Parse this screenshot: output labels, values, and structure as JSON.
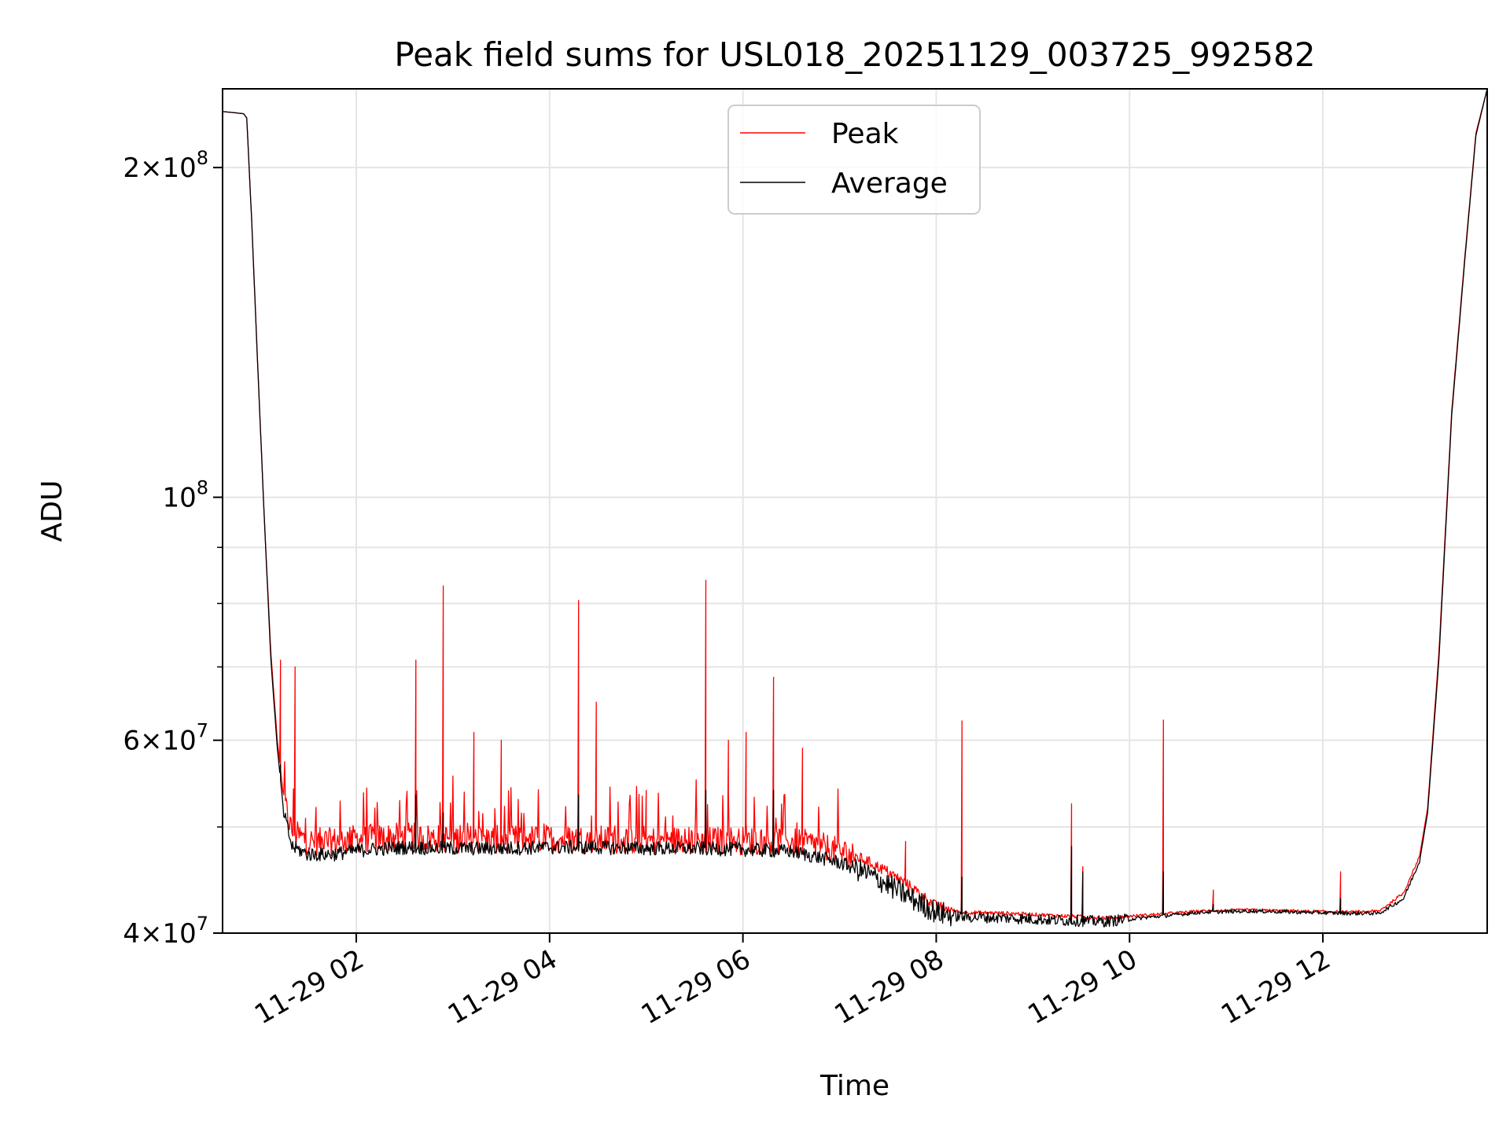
{
  "chart_data": {
    "type": "line",
    "title": "Peak field sums for USL018_20251129_003725_992582",
    "xlabel": "Time",
    "ylabel": "ADU",
    "y_scale": "log",
    "x_range": [
      "2025-11-29 00:37",
      "2025-11-29 13:42"
    ],
    "ylim": [
      40000000,
      236000000
    ],
    "x_ticks": [
      {
        "value": "2025-11-29 02:00",
        "label": "11-29 02"
      },
      {
        "value": "2025-11-29 04:00",
        "label": "11-29 04"
      },
      {
        "value": "2025-11-29 06:00",
        "label": "11-29 06"
      },
      {
        "value": "2025-11-29 08:00",
        "label": "11-29 08"
      },
      {
        "value": "2025-11-29 10:00",
        "label": "11-29 10"
      },
      {
        "value": "2025-11-29 12:00",
        "label": "11-29 12"
      }
    ],
    "y_major_ticks": [
      {
        "value": 40000000,
        "mantissa": "4",
        "exponent": "7"
      },
      {
        "value": 60000000,
        "mantissa": "6",
        "exponent": "7"
      },
      {
        "value": 100000000,
        "mantissa": "",
        "exponent": "8"
      },
      {
        "value": 200000000,
        "mantissa": "2",
        "exponent": "8"
      }
    ],
    "y_minor_ticks": [
      50000000,
      70000000,
      80000000,
      90000000
    ],
    "grid": true,
    "legend": {
      "position": "top-center"
    },
    "series": [
      {
        "name": "Peak",
        "color": "#ff0000",
        "points": [
          [
            "2025-11-29 00:37",
            225000000
          ],
          [
            "2025-11-29 00:50",
            224000000
          ],
          [
            "2025-11-29 00:52",
            222000000
          ],
          [
            "2025-11-29 00:55",
            180000000
          ],
          [
            "2025-11-29 00:59",
            130000000
          ],
          [
            "2025-11-29 01:03",
            95000000
          ],
          [
            "2025-11-29 01:07",
            72000000
          ],
          [
            "2025-11-29 01:11",
            60000000
          ],
          [
            "2025-11-29 01:15",
            53000000
          ],
          [
            "2025-11-29 01:20",
            49500000
          ],
          [
            "2025-11-29 01:30",
            48500000
          ],
          [
            "2025-11-29 01:45",
            48500000
          ],
          [
            "2025-11-29 02:00",
            48800000
          ],
          [
            "2025-11-29 02:30",
            49000000
          ],
          [
            "2025-11-29 03:00",
            48800000
          ],
          [
            "2025-11-29 03:30",
            48700000
          ],
          [
            "2025-11-29 04:00",
            48800000
          ],
          [
            "2025-11-29 04:30",
            48700000
          ],
          [
            "2025-11-29 05:00",
            48600000
          ],
          [
            "2025-11-29 05:30",
            48600000
          ],
          [
            "2025-11-29 06:00",
            48600000
          ],
          [
            "2025-11-29 06:30",
            48500000
          ],
          [
            "2025-11-29 06:45",
            48200000
          ],
          [
            "2025-11-29 07:00",
            47500000
          ],
          [
            "2025-11-29 07:15",
            46700000
          ],
          [
            "2025-11-29 07:30",
            45500000
          ],
          [
            "2025-11-29 07:45",
            44000000
          ],
          [
            "2025-11-29 08:00",
            42300000
          ],
          [
            "2025-11-29 08:15",
            41800000
          ],
          [
            "2025-11-29 08:45",
            41700000
          ],
          [
            "2025-11-29 09:15",
            41500000
          ],
          [
            "2025-11-29 09:45",
            41300000
          ],
          [
            "2025-11-29 10:15",
            41600000
          ],
          [
            "2025-11-29 10:45",
            41900000
          ],
          [
            "2025-11-29 11:15",
            42000000
          ],
          [
            "2025-11-29 11:45",
            41900000
          ],
          [
            "2025-11-29 12:15",
            41800000
          ],
          [
            "2025-11-29 12:35",
            41900000
          ],
          [
            "2025-11-29 12:50",
            43500000
          ],
          [
            "2025-11-29 13:00",
            47000000
          ],
          [
            "2025-11-29 13:05",
            52000000
          ],
          [
            "2025-11-29 13:12",
            72000000
          ],
          [
            "2025-11-29 13:20",
            120000000
          ],
          [
            "2025-11-29 13:28",
            165000000
          ],
          [
            "2025-11-29 13:35",
            215000000
          ],
          [
            "2025-11-29 13:42",
            236000000
          ]
        ],
        "spikes": [
          [
            "2025-11-29 01:13",
            71000000
          ],
          [
            "2025-11-29 01:22",
            70000000
          ],
          [
            "2025-11-29 02:37",
            71000000
          ],
          [
            "2025-11-29 02:54",
            83000000
          ],
          [
            "2025-11-29 03:13",
            61000000
          ],
          [
            "2025-11-29 03:30",
            60000000
          ],
          [
            "2025-11-29 04:18",
            80500000
          ],
          [
            "2025-11-29 04:29",
            65000000
          ],
          [
            "2025-11-29 05:00",
            54000000
          ],
          [
            "2025-11-29 05:37",
            84000000
          ],
          [
            "2025-11-29 05:51",
            60000000
          ],
          [
            "2025-11-29 06:02",
            61000000
          ],
          [
            "2025-11-29 06:19",
            68500000
          ],
          [
            "2025-11-29 06:37",
            59000000
          ],
          [
            "2025-11-29 07:41",
            48500000
          ],
          [
            "2025-11-29 08:16",
            62500000
          ],
          [
            "2025-11-29 09:24",
            52500000
          ],
          [
            "2025-11-29 09:31",
            46000000
          ],
          [
            "2025-11-29 10:21",
            62600000
          ],
          [
            "2025-11-29 10:52",
            43800000
          ],
          [
            "2025-11-29 12:11",
            45500000
          ]
        ]
      },
      {
        "name": "Average",
        "color": "#000000",
        "points": [
          [
            "2025-11-29 00:37",
            225000000
          ],
          [
            "2025-11-29 00:50",
            224000000
          ],
          [
            "2025-11-29 00:52",
            222000000
          ],
          [
            "2025-11-29 00:55",
            180000000
          ],
          [
            "2025-11-29 00:59",
            130000000
          ],
          [
            "2025-11-29 01:03",
            95000000
          ],
          [
            "2025-11-29 01:07",
            71000000
          ],
          [
            "2025-11-29 01:11",
            59000000
          ],
          [
            "2025-11-29 01:15",
            51500000
          ],
          [
            "2025-11-29 01:20",
            48000000
          ],
          [
            "2025-11-29 01:30",
            47200000
          ],
          [
            "2025-11-29 01:45",
            47200000
          ],
          [
            "2025-11-29 02:00",
            47600000
          ],
          [
            "2025-11-29 02:30",
            47900000
          ],
          [
            "2025-11-29 03:00",
            47800000
          ],
          [
            "2025-11-29 03:30",
            47800000
          ],
          [
            "2025-11-29 04:00",
            47900000
          ],
          [
            "2025-11-29 04:30",
            47900000
          ],
          [
            "2025-11-29 05:00",
            47800000
          ],
          [
            "2025-11-29 05:30",
            47800000
          ],
          [
            "2025-11-29 06:00",
            47700000
          ],
          [
            "2025-11-29 06:30",
            47500000
          ],
          [
            "2025-11-29 06:45",
            47000000
          ],
          [
            "2025-11-29 07:00",
            46400000
          ],
          [
            "2025-11-29 07:15",
            45500000
          ],
          [
            "2025-11-29 07:30",
            44300000
          ],
          [
            "2025-11-29 07:45",
            43000000
          ],
          [
            "2025-11-29 08:00",
            41800000
          ],
          [
            "2025-11-29 08:15",
            41400000
          ],
          [
            "2025-11-29 08:45",
            41300000
          ],
          [
            "2025-11-29 09:15",
            41100000
          ],
          [
            "2025-11-29 09:45",
            41000000
          ],
          [
            "2025-11-29 10:15",
            41400000
          ],
          [
            "2025-11-29 10:45",
            41800000
          ],
          [
            "2025-11-29 11:15",
            41900000
          ],
          [
            "2025-11-29 11:45",
            41800000
          ],
          [
            "2025-11-29 12:15",
            41700000
          ],
          [
            "2025-11-29 12:35",
            41700000
          ],
          [
            "2025-11-29 12:50",
            43000000
          ],
          [
            "2025-11-29 13:00",
            46500000
          ],
          [
            "2025-11-29 13:05",
            51500000
          ],
          [
            "2025-11-29 13:12",
            71000000
          ],
          [
            "2025-11-29 13:20",
            119000000
          ],
          [
            "2025-11-29 13:28",
            164000000
          ],
          [
            "2025-11-29 13:35",
            214000000
          ],
          [
            "2025-11-29 13:42",
            236000000
          ]
        ],
        "spikes": [
          [
            "2025-11-29 01:13",
            57000000
          ],
          [
            "2025-11-29 02:37",
            53500000
          ],
          [
            "2025-11-29 02:54",
            51500000
          ],
          [
            "2025-11-29 04:18",
            53500000
          ],
          [
            "2025-11-29 05:37",
            54000000
          ],
          [
            "2025-11-29 06:19",
            54000000
          ],
          [
            "2025-11-29 08:16",
            45000000
          ],
          [
            "2025-11-29 09:24",
            48000000
          ],
          [
            "2025-11-29 09:31",
            45500000
          ],
          [
            "2025-11-29 10:21",
            45500000
          ],
          [
            "2025-11-29 10:52",
            42500000
          ],
          [
            "2025-11-29 12:11",
            43000000
          ]
        ]
      }
    ]
  }
}
